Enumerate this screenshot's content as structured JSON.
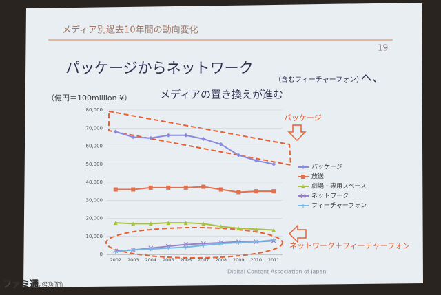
{
  "slide": {
    "header": "メディア別過去10年間の動向変化",
    "page": "19",
    "footer": "Digital Content Association of Japan",
    "watermark": "ファミ通.com"
  },
  "chart_data": {
    "type": "line",
    "title": "パッケージからネットワーク",
    "title_note": "（含むフィーチャーフォン）",
    "title_end": "へ、",
    "subtitle": "メディアの置き換えが進む",
    "unit": "（億円＝100million ¥）",
    "annotations": [
      "パッケージ",
      "ネットワーク＋フィーチャーフォン"
    ],
    "categories": [
      "2002",
      "2003",
      "2004",
      "2005",
      "2006",
      "2007",
      "2008",
      "2009",
      "2010",
      "2011"
    ],
    "series": [
      {
        "name": "パッケージ",
        "color": "#8a8ae0",
        "marker": "diamond",
        "values": [
          68000,
          65000,
          64500,
          66000,
          66000,
          64000,
          61000,
          55000,
          52000,
          50000
        ]
      },
      {
        "name": "放送",
        "color": "#e0704e",
        "marker": "square",
        "values": [
          36000,
          36000,
          37000,
          37000,
          37000,
          37500,
          36000,
          34500,
          35000,
          35000
        ]
      },
      {
        "name": "劇場・専用スペース",
        "color": "#a8c040",
        "marker": "triangle",
        "values": [
          17500,
          17000,
          17000,
          17500,
          17500,
          17000,
          15500,
          14500,
          14000,
          13500
        ]
      },
      {
        "name": "ネットワーク",
        "color": "#9a80c8",
        "marker": "cross",
        "values": [
          2000,
          2500,
          3500,
          4500,
          5500,
          6000,
          6500,
          7000,
          7000,
          7500
        ]
      },
      {
        "name": "フィーチャーフォン",
        "color": "#70b8e8",
        "marker": "star",
        "values": [
          1500,
          2500,
          3000,
          3500,
          4000,
          5000,
          6000,
          6500,
          7000,
          8000
        ]
      }
    ],
    "ylim": [
      0,
      80000
    ],
    "yticks": [
      0,
      {
        "value": 10000,
        "label": "10,000"
      },
      {
        "value": 20000,
        "label": "20,000"
      },
      {
        "value": 30000,
        "label": "30,000"
      },
      {
        "value": 40000,
        "label": "40,000"
      },
      {
        "value": 50000,
        "label": "50,000"
      },
      {
        "value": 60000,
        "label": "60,000"
      },
      {
        "value": 70000,
        "label": "70,000"
      },
      {
        "value": 80000,
        "label": "80,000"
      }
    ],
    "grid": true
  }
}
